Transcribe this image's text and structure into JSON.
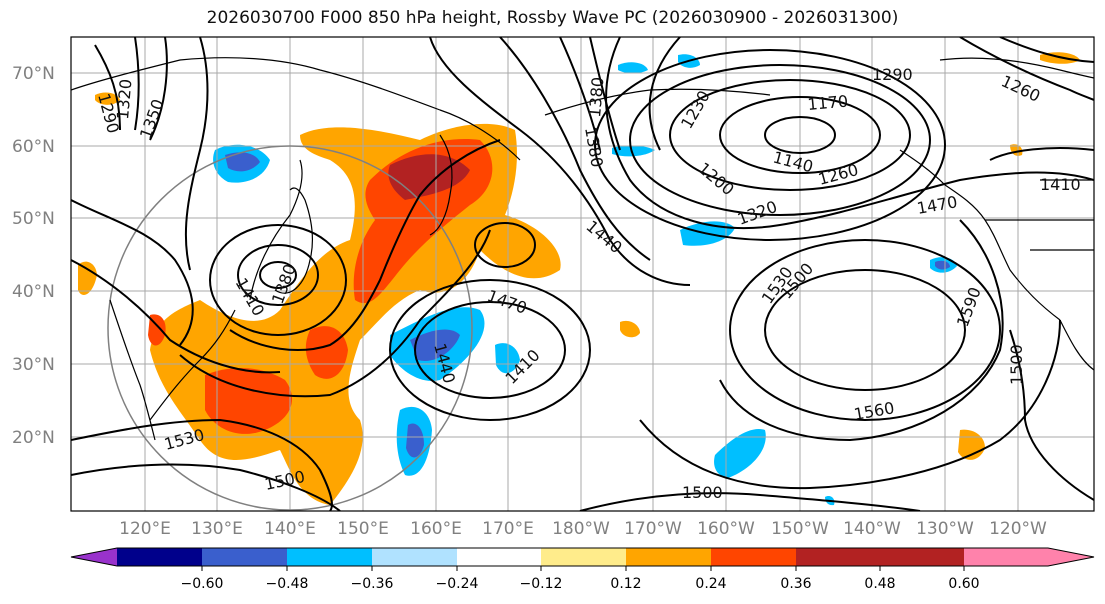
{
  "title": "2026030700 F000 850 hPa height, Rossby Wave PC (2026030900 - 2026031300)",
  "lat_labels": [
    "70°N",
    "60°N",
    "50°N",
    "40°N",
    "30°N",
    "20°N"
  ],
  "lon_labels": [
    "120°E",
    "130°E",
    "140°E",
    "150°E",
    "160°E",
    "170°E",
    "180°W",
    "170°W",
    "160°W",
    "150°W",
    "140°W",
    "130°W",
    "120°W"
  ],
  "colorbar": {
    "colors": [
      "#9932cc",
      "#00008b",
      "#3a5fcd",
      "#00bfff",
      "#b0e2ff",
      "#ffffff",
      "#ffec8b",
      "#ffa500",
      "#ff4500",
      "#b22222",
      "#ff82ab"
    ],
    "ticks": [
      "−0.60",
      "−0.48",
      "−0.36",
      "−0.24",
      "−0.12",
      "0.12",
      "0.24",
      "0.36",
      "0.48",
      "0.60"
    ]
  },
  "contour_labels": [
    "1290",
    "1320",
    "1350",
    "1380",
    "1380",
    "1230",
    "1170",
    "1290",
    "1260",
    "1200",
    "1140",
    "1260",
    "1320",
    "1410",
    "1470",
    "1440",
    "1410",
    "1380",
    "1470",
    "1440",
    "1410",
    "1530",
    "1500",
    "1590",
    "1500",
    "1560",
    "1530",
    "1500",
    "1500"
  ]
}
